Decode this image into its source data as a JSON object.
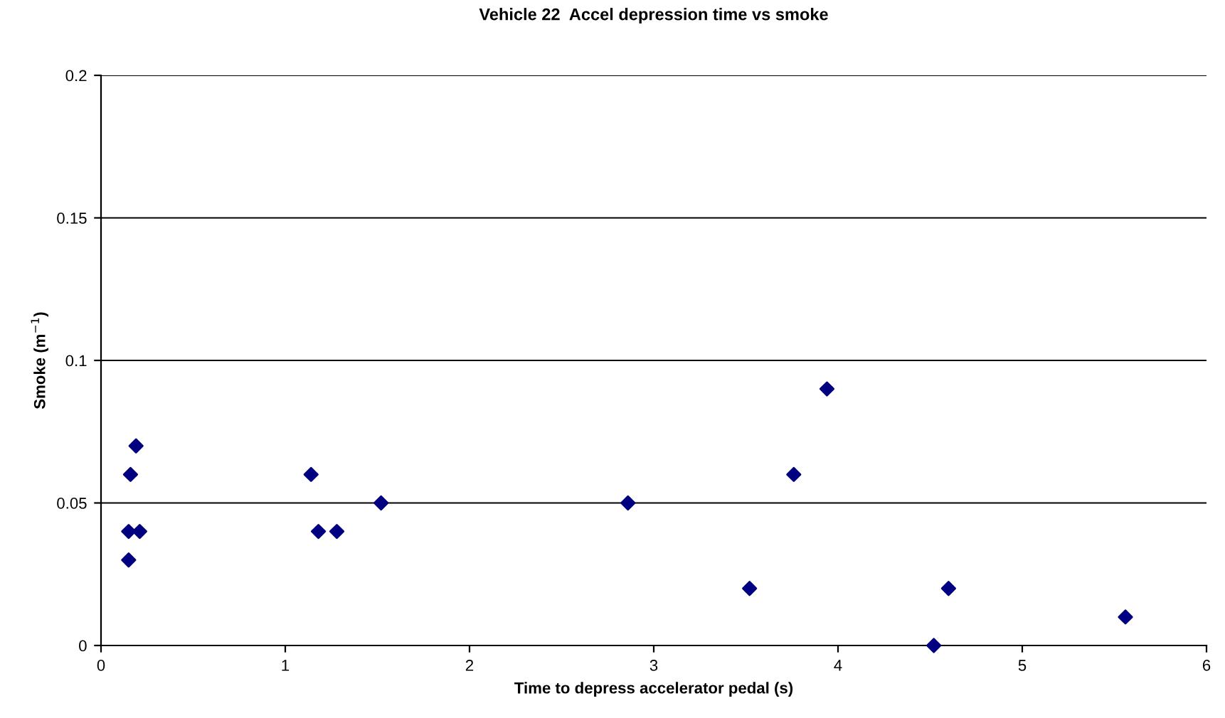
{
  "chart_data": {
    "type": "scatter",
    "title": "Vehicle 22  Accel depression time vs smoke",
    "xlabel": "Time to depress accelerator pedal (s)",
    "ylabel": "Smoke (m$^{−1}$)",
    "x": [
      0.15,
      0.15,
      0.16,
      0.19,
      0.21,
      1.14,
      1.18,
      1.28,
      1.52,
      2.86,
      3.52,
      3.76,
      3.94,
      4.52,
      4.6,
      5.56
    ],
    "values": [
      0.03,
      0.04,
      0.06,
      0.07,
      0.04,
      0.06,
      0.04,
      0.04,
      0.05,
      0.05,
      0.02,
      0.06,
      0.09,
      0,
      0.02,
      0.01
    ],
    "color": "#000080",
    "marker": "diamond",
    "xlim": [
      0,
      6
    ],
    "xticks": [
      0,
      1,
      2,
      3,
      4,
      5,
      6
    ],
    "ylim": [
      0,
      0.2
    ],
    "yticks": [
      0,
      0.05,
      0.1,
      0.15,
      0.2
    ],
    "grid": "y",
    "legend": false
  }
}
